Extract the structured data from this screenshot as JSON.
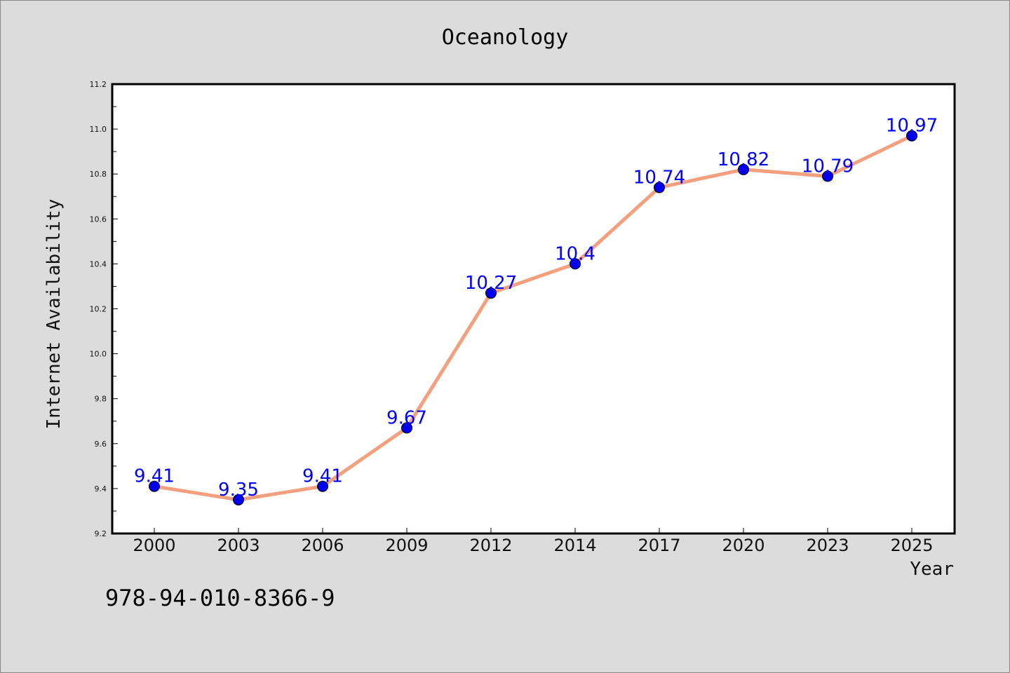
{
  "chart_data": {
    "type": "line",
    "title": "Oceanology",
    "xlabel": "Year",
    "ylabel": "Internet Availability",
    "categories": [
      "2000",
      "2003",
      "2006",
      "2009",
      "2012",
      "2014",
      "2017",
      "2020",
      "2023",
      "2025"
    ],
    "series": [
      {
        "values": [
          9.41,
          9.35,
          9.41,
          9.67,
          10.27,
          10.4,
          10.74,
          10.82,
          10.79,
          10.97
        ],
        "data_labels": [
          "9.41",
          "9.35",
          "9.41",
          "9.67",
          "10.27",
          "10.4",
          "10.74",
          "10.82",
          "10.79",
          "10.97"
        ],
        "line_color": "#f4a07f",
        "marker_color": "#0000ee",
        "label_color": "#0000ff"
      }
    ],
    "ylim": [
      9.2,
      11.2
    ],
    "yticks": [
      "9.2",
      "9.4",
      "9.6",
      "9.8",
      "10.0",
      "10.2",
      "10.4",
      "10.6",
      "10.8",
      "11.0",
      "11.2"
    ],
    "grid": false,
    "legend": "none"
  },
  "footer_text": "978-94-010-8366-9",
  "colors": {
    "background": "#dcdcdc",
    "plot_background": "#ffffff"
  }
}
